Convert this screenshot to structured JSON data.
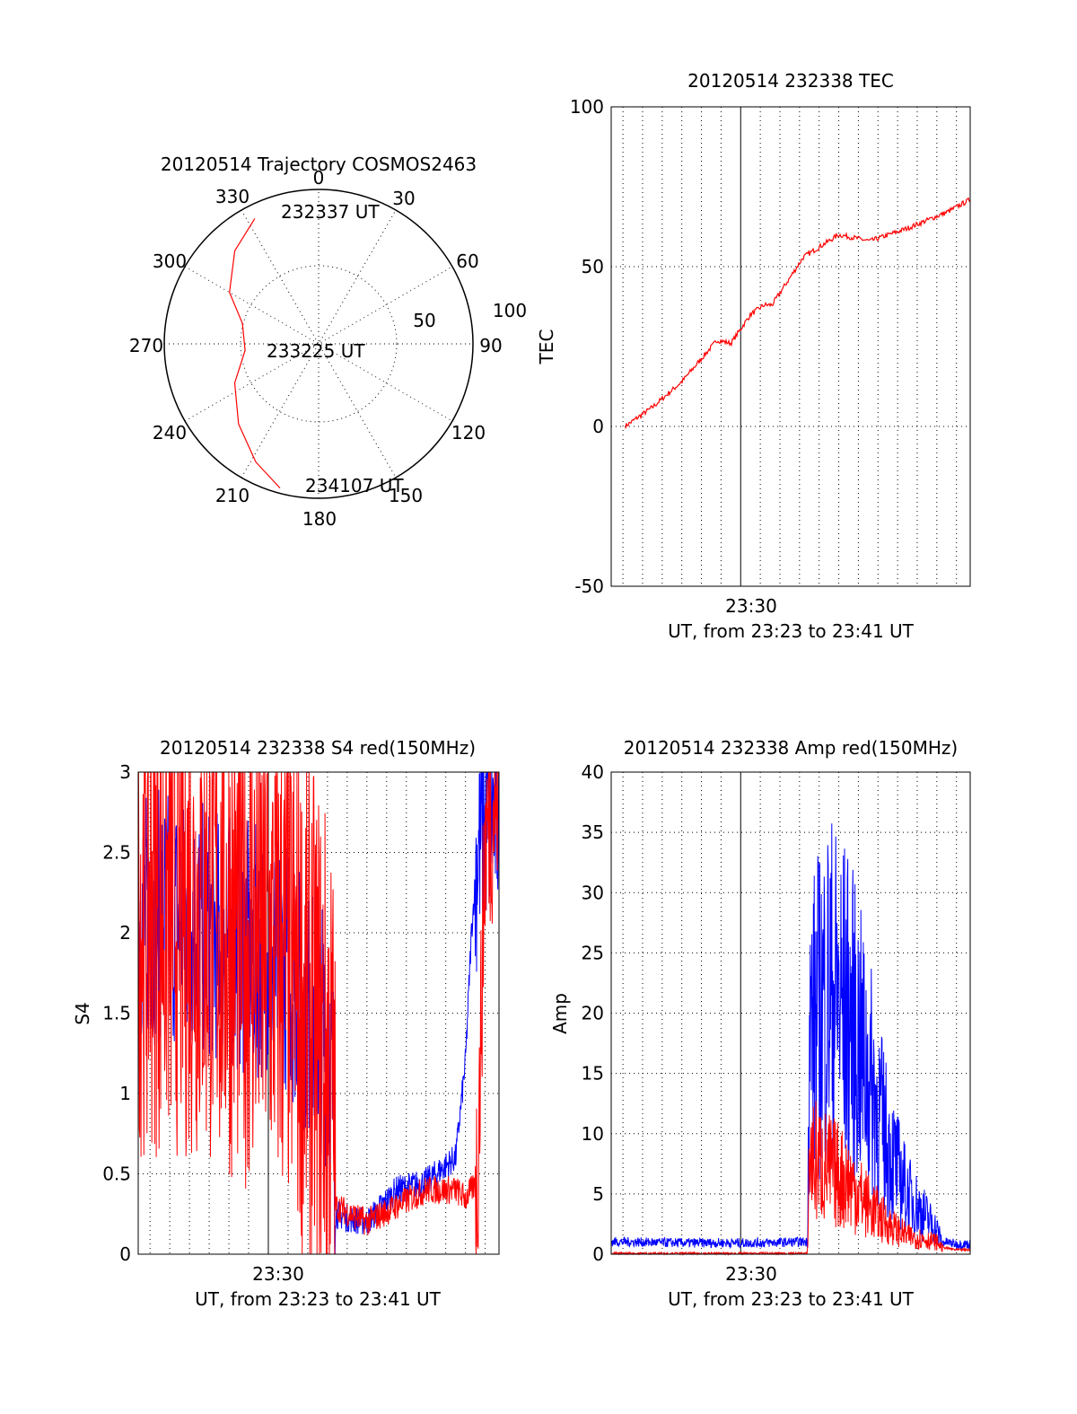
{
  "colors": {
    "red": "#ff0000",
    "blue": "#0000ff",
    "axis": "#000000",
    "background": "#ffffff"
  },
  "chart_data": [
    {
      "id": "trajectory",
      "type": "polar",
      "title": "20120514 Trajectory COSMOS2463",
      "azimuth_labels": [
        "0",
        "30",
        "60",
        "90",
        "120",
        "150",
        "180",
        "210",
        "240",
        "270",
        "300",
        "330"
      ],
      "radial_labels": [
        "50",
        "100"
      ],
      "elevation_rings": [
        0,
        50
      ],
      "grid": true,
      "series": [
        {
          "color": "#ff0000",
          "points": [
            {
              "az": 333,
              "el": 8
            },
            {
              "az": 318,
              "el": 17
            },
            {
              "az": 300,
              "el": 30
            },
            {
              "az": 285,
              "el": 44
            },
            {
              "az": 265,
              "el": 47
            },
            {
              "az": 245,
              "el": 36
            },
            {
              "az": 225,
              "el": 24
            },
            {
              "az": 208,
              "el": 12
            },
            {
              "az": 195,
              "el": 3
            }
          ]
        }
      ],
      "annotations": [
        "232337 UT",
        "233225 UT",
        "234107 UT"
      ]
    },
    {
      "id": "tec",
      "type": "line",
      "title": "20120514 232338 TEC",
      "ylabel": "TEC",
      "xlabel": "UT, from 23:23 to 23:41 UT",
      "xlim_minutes": [
        23.4,
        41.7
      ],
      "xtick_label": "23:30",
      "ylim": [
        -50,
        100
      ],
      "yticks": [
        "-50",
        "0",
        "50",
        "100"
      ],
      "grid": true,
      "series": [
        {
          "color": "#ff0000",
          "t": [
            24.1,
            25.5,
            27.0,
            28.8,
            29.5,
            30.5,
            31.2,
            31.6,
            33.2,
            35.0,
            36.6,
            38.5,
            40.5,
            41.7
          ],
          "v": [
            0,
            6,
            14,
            27,
            26,
            35,
            38,
            38,
            53,
            60,
            58,
            62,
            67,
            71
          ]
        }
      ]
    },
    {
      "id": "s4",
      "type": "line",
      "title": "20120514 232338 S4 red(150MHz)",
      "ylabel": "S4",
      "xlabel": "UT, from 23:23 to 23:41 UT",
      "xlim_minutes": [
        23.4,
        41.7
      ],
      "xtick_label": "23:30",
      "ylim": [
        0,
        3
      ],
      "yticks": [
        "0",
        "0.5",
        "1",
        "1.5",
        "2",
        "2.5",
        "3"
      ],
      "grid": true,
      "series": [
        {
          "color": "#0000ff",
          "t": [
            23.4,
            25.0,
            27.0,
            29.0,
            31.0,
            32.0,
            32.8,
            33.3,
            33.4,
            34.2,
            35.0,
            36.5,
            38.0,
            39.5,
            40.0,
            40.3,
            40.6,
            41.0,
            41.7
          ],
          "v": [
            2.1,
            2.1,
            2.0,
            1.9,
            1.8,
            1.5,
            1.4,
            1.0,
            0.25,
            0.22,
            0.2,
            0.4,
            0.45,
            0.6,
            1.2,
            2.0,
            2.5,
            2.7,
            2.8
          ]
        },
        {
          "color": "#ff0000",
          "t": [
            23.4,
            25.0,
            27.0,
            29.0,
            31.0,
            32.0,
            32.8,
            33.3,
            33.4,
            34.2,
            35.0,
            36.5,
            38.0,
            39.5,
            40.0,
            40.3,
            40.6,
            41.0,
            41.7
          ],
          "v": [
            2.2,
            2.2,
            2.1,
            2.0,
            1.8,
            1.5,
            1.3,
            1.0,
            0.3,
            0.25,
            0.2,
            0.3,
            0.4,
            0.4,
            0.35,
            0.4,
            0.45,
            2.6,
            2.9
          ]
        }
      ]
    },
    {
      "id": "amp",
      "type": "line",
      "title": "20120514 232338 Amp red(150MHz)",
      "ylabel": "Amp",
      "xlabel": "UT, from 23:23 to 23:41 UT",
      "xlim_minutes": [
        23.4,
        41.7
      ],
      "xtick_label": "23:30",
      "ylim": [
        0,
        40
      ],
      "yticks": [
        "0",
        "5",
        "10",
        "15",
        "20",
        "25",
        "30",
        "35",
        "40"
      ],
      "grid": true,
      "series": [
        {
          "color": "#0000ff",
          "t": [
            23.4,
            27.0,
            31.0,
            33.4,
            33.5,
            34.5,
            35.5,
            36.5,
            37.5,
            38.5,
            39.5,
            40.0,
            40.3,
            41.0,
            41.7
          ],
          "v": [
            0.8,
            0.7,
            0.7,
            0.8,
            18.0,
            22.0,
            20.0,
            15.0,
            9.0,
            5.0,
            3.0,
            2.0,
            0.8,
            0.6,
            0.6
          ]
        },
        {
          "color": "#ff0000",
          "t": [
            23.4,
            27.0,
            31.0,
            33.4,
            33.5,
            34.5,
            35.5,
            36.5,
            37.5,
            38.5,
            39.5,
            40.0,
            40.3,
            41.0,
            41.7
          ],
          "v": [
            0.0,
            0.0,
            0.0,
            0.0,
            8.0,
            7.0,
            6.0,
            4.0,
            2.5,
            1.5,
            1.2,
            1.0,
            0.5,
            0.3,
            0.3
          ]
        }
      ]
    }
  ]
}
